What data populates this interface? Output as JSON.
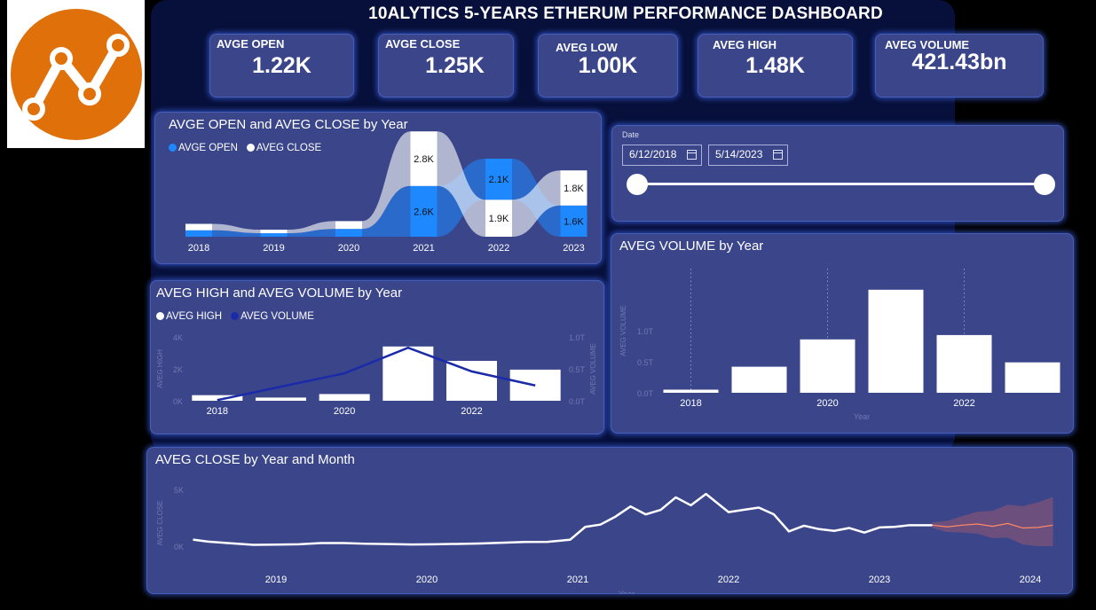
{
  "title": "10ALYTICS 5-YEARS ETHERUM PERFORMANCE DASHBOARD",
  "logo_icon": "line-chart-logo-icon",
  "kpis": [
    {
      "label": "AVGE OPEN",
      "value": "1.22K"
    },
    {
      "label": "AVGE CLOSE",
      "value": "1.25K"
    },
    {
      "label": "AVEG LOW",
      "value": "1.00K"
    },
    {
      "label": "AVEG HIGH",
      "value": "1.48K"
    },
    {
      "label": "AVEG VOLUME",
      "value": "421.43bn"
    }
  ],
  "date_filter": {
    "label": "Date",
    "start": "6/12/2018",
    "end": "5/14/2023",
    "icon": "calendar-icon"
  },
  "colors": {
    "open": "#1e88ff",
    "close": "#ffffff",
    "volume_line": "#1a2aa8",
    "forecast": "#ff8a65",
    "panel": "#3b468a"
  },
  "chart_data": [
    {
      "type": "area",
      "title": "AVGE OPEN and AVEG CLOSE by Year",
      "categories": [
        "2018",
        "2019",
        "2020",
        "2021",
        "2022",
        "2023"
      ],
      "series": [
        {
          "name": "AVGE OPEN",
          "values": [
            0.33,
            0.18,
            0.4,
            2.6,
            2.1,
            1.6
          ],
          "labels": [
            "",
            "",
            "",
            "2.6K",
            "2.1K",
            "1.6K"
          ]
        },
        {
          "name": "AVEG CLOSE",
          "values": [
            0.33,
            0.18,
            0.4,
            2.8,
            1.9,
            1.8
          ],
          "labels": [
            "",
            "",
            "",
            "2.8K",
            "1.9K",
            "1.8K"
          ]
        }
      ]
    },
    {
      "type": "bar",
      "title": "AVEG HIGH and AVEG VOLUME by Year",
      "categories": [
        "2018",
        "2019",
        "2020",
        "2021",
        "2022",
        "2023"
      ],
      "tick_labels": [
        "2018",
        "",
        "2020",
        "",
        "2022",
        ""
      ],
      "series": [
        {
          "name": "AVEG HIGH",
          "values": [
            350,
            200,
            420,
            3400,
            2500,
            1950
          ],
          "axis": "left"
        },
        {
          "name": "AVEG VOLUME",
          "values": [
            0.01,
            0.22,
            0.43,
            0.83,
            0.46,
            0.24
          ],
          "axis": "right"
        }
      ],
      "ylabel": "AVEG HIGH",
      "y2label": "AVEG VOLUME",
      "ylim": [
        0,
        4000
      ],
      "y2lim": [
        0,
        1.0
      ],
      "yticks": [
        "0K",
        "2K",
        "4K"
      ],
      "y2ticks": [
        "0.0T",
        "0.5T",
        "1.0T"
      ]
    },
    {
      "type": "bar",
      "title": "AVEG VOLUME by Year",
      "categories": [
        "2018",
        "2019",
        "2020",
        "2021",
        "2022",
        "2023"
      ],
      "tick_labels": [
        "2018",
        "",
        "2020",
        "",
        "2022",
        ""
      ],
      "values": [
        0.05,
        0.42,
        0.86,
        1.66,
        0.93,
        0.49
      ],
      "xlabel": "Year",
      "ylabel": "AVEG VOLUME",
      "ylim": [
        0,
        2.0
      ],
      "yticks": [
        "0.0T",
        "0.5T",
        "1.0T"
      ]
    },
    {
      "type": "line",
      "title": "AVEG CLOSE by Year and Month",
      "x": [
        2018.45,
        2018.55,
        2018.7,
        2018.85,
        2019.0,
        2019.15,
        2019.3,
        2019.45,
        2019.6,
        2019.75,
        2019.9,
        2020.05,
        2020.2,
        2020.35,
        2020.5,
        2020.65,
        2020.8,
        2020.95,
        2021.05,
        2021.15,
        2021.25,
        2021.35,
        2021.45,
        2021.55,
        2021.65,
        2021.75,
        2021.85,
        2022.0,
        2022.1,
        2022.2,
        2022.3,
        2022.4,
        2022.5,
        2022.6,
        2022.7,
        2022.8,
        2022.9,
        2023.0,
        2023.1,
        2023.2,
        2023.3,
        2023.35
      ],
      "values": [
        580,
        400,
        250,
        120,
        140,
        170,
        270,
        270,
        210,
        190,
        150,
        170,
        200,
        230,
        300,
        370,
        380,
        570,
        1700,
        1900,
        2600,
        3500,
        2800,
        3200,
        4300,
        3600,
        4600,
        3000,
        3200,
        3400,
        2800,
        1300,
        1800,
        1500,
        1350,
        1600,
        1200,
        1650,
        1700,
        1850,
        1850,
        1850
      ],
      "forecast": {
        "x": [
          2023.35,
          2023.45,
          2023.55,
          2023.65,
          2023.75,
          2023.85,
          2023.95,
          2024.05,
          2024.15
        ],
        "values": [
          1850,
          1700,
          1850,
          1950,
          1750,
          2000,
          1600,
          1650,
          1850
        ]
      },
      "xticks": [
        "2019",
        "2020",
        "2021",
        "2022",
        "2023",
        "2024"
      ],
      "xlabel": "Year",
      "ylabel": "AVEG CLOSE",
      "ylim": [
        0,
        5000
      ],
      "yticks": [
        "0K",
        "5K"
      ]
    }
  ]
}
